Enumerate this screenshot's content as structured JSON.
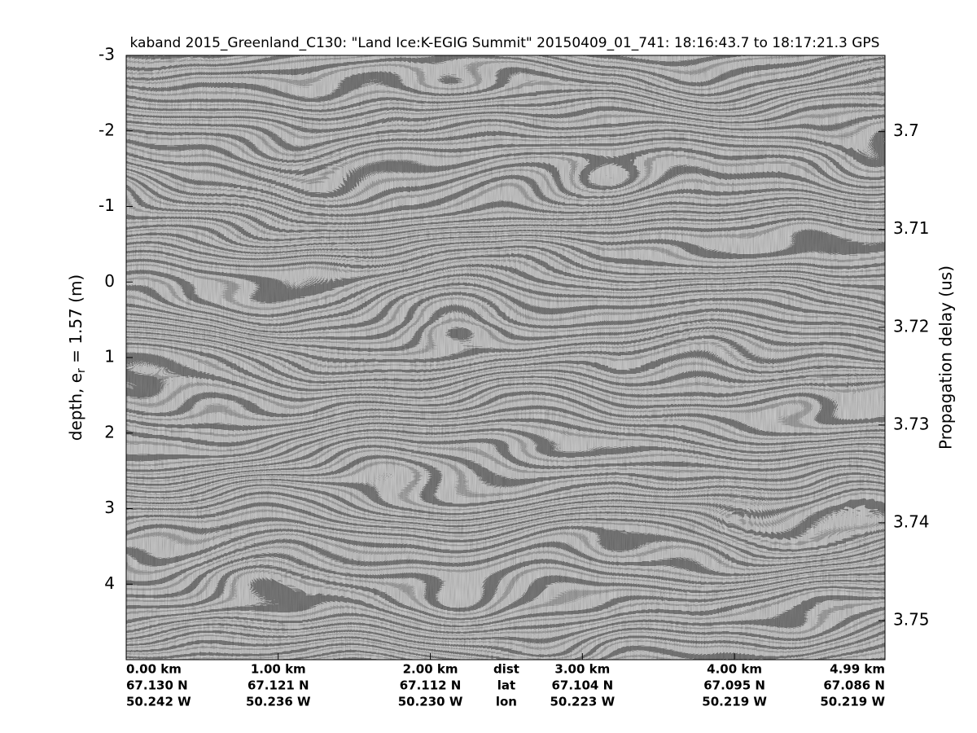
{
  "chart_data": {
    "type": "image",
    "title": "kaband 2015_Greenland_C130: \"Land Ice:K-EGIG Summit\"  20150409_01_741: 18:16:43.7 to 18:17:21.3 GPS",
    "ylabel": [
      "depth, e",
      "r",
      " = 1.57 (m)"
    ],
    "y2label": "Propagation delay (us)",
    "ylim": [
      -3,
      5
    ],
    "yticks": [
      -3,
      -2,
      -1,
      0,
      1,
      2,
      3,
      4
    ],
    "y2lim": [
      3.6922,
      3.754
    ],
    "y2ticks": [
      3.7,
      3.71,
      3.72,
      3.73,
      3.74,
      3.75
    ],
    "xlim": [
      0,
      4.99
    ],
    "xticks": [
      {
        "value": 0,
        "label": "0.00 km"
      },
      {
        "value": 1,
        "label": "1.00 km"
      },
      {
        "value": 2,
        "label": "2.00 km"
      },
      {
        "value": 3,
        "label": "3.00 km"
      },
      {
        "value": 4,
        "label": "4.00 km"
      },
      {
        "value": 4.99,
        "label": "4.99 km"
      }
    ],
    "lat_labels": [
      "67.130 N",
      "67.121 N",
      "67.112 N",
      "67.104 N",
      "67.095 N",
      "67.086 N"
    ],
    "lon_labels": [
      "50.242 W",
      "50.236 W",
      "50.230 W",
      "50.223 W",
      "50.219 W",
      "50.219 W"
    ],
    "row_names": [
      "dist",
      "lat",
      "lon"
    ]
  }
}
